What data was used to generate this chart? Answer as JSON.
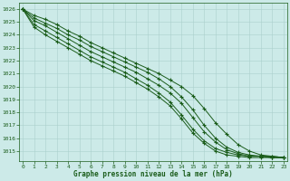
{
  "xlabel": "Graphe pression niveau de la mer (hPa)",
  "ylim": [
    1014.2,
    1026.5
  ],
  "xlim": [
    -0.3,
    23.3
  ],
  "yticks": [
    1015,
    1016,
    1017,
    1018,
    1019,
    1020,
    1021,
    1022,
    1023,
    1024,
    1025,
    1026
  ],
  "xticks": [
    0,
    1,
    2,
    3,
    4,
    5,
    6,
    7,
    8,
    9,
    10,
    11,
    12,
    13,
    14,
    15,
    16,
    17,
    18,
    19,
    20,
    21,
    22,
    23
  ],
  "background_color": "#cceae8",
  "line_color": "#1a5c1a",
  "grid_color": "#aad0cc",
  "series": [
    [
      1026.0,
      1025.5,
      1025.2,
      1024.8,
      1024.3,
      1023.9,
      1023.4,
      1023.0,
      1022.6,
      1022.2,
      1021.8,
      1021.4,
      1021.0,
      1020.5,
      1020.0,
      1019.3,
      1018.3,
      1017.2,
      1016.3,
      1015.5,
      1015.0,
      1014.7,
      1014.6,
      1014.5
    ],
    [
      1026.0,
      1025.3,
      1024.9,
      1024.5,
      1024.0,
      1023.6,
      1023.1,
      1022.7,
      1022.3,
      1021.9,
      1021.5,
      1021.1,
      1020.6,
      1020.0,
      1019.2,
      1018.2,
      1017.0,
      1016.0,
      1015.3,
      1014.9,
      1014.7,
      1014.6,
      1014.6,
      1014.5
    ],
    [
      1026.0,
      1025.1,
      1024.7,
      1024.2,
      1023.7,
      1023.2,
      1022.7,
      1022.3,
      1021.9,
      1021.5,
      1021.1,
      1020.6,
      1020.1,
      1019.5,
      1018.7,
      1017.6,
      1016.5,
      1015.7,
      1015.1,
      1014.8,
      1014.6,
      1014.6,
      1014.5,
      1014.5
    ],
    [
      1026.0,
      1024.8,
      1024.3,
      1023.8,
      1023.3,
      1022.8,
      1022.3,
      1021.9,
      1021.5,
      1021.1,
      1020.6,
      1020.1,
      1019.5,
      1018.8,
      1017.8,
      1016.7,
      1015.8,
      1015.2,
      1014.9,
      1014.7,
      1014.6,
      1014.6,
      1014.5,
      1014.5
    ],
    [
      1026.0,
      1024.6,
      1024.0,
      1023.5,
      1023.0,
      1022.5,
      1022.0,
      1021.6,
      1021.2,
      1020.8,
      1020.3,
      1019.8,
      1019.2,
      1018.5,
      1017.5,
      1016.4,
      1015.6,
      1015.0,
      1014.7,
      1014.6,
      1014.5,
      1014.5,
      1014.5,
      1014.5
    ]
  ]
}
